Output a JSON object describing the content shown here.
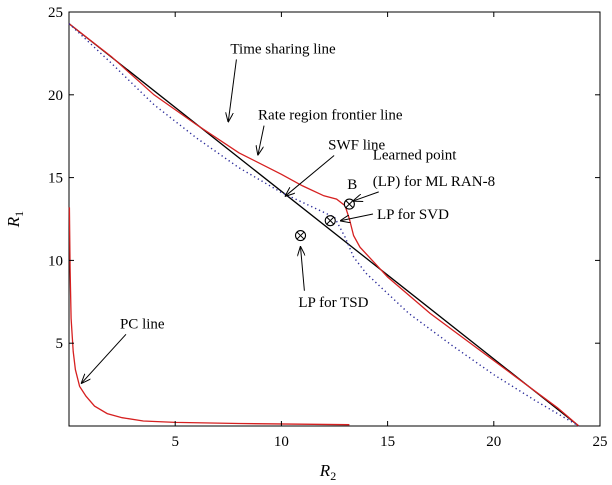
{
  "chart_data": {
    "type": "line",
    "xlabel": "R",
    "xlabel_sub": "2",
    "ylabel": "R",
    "ylabel_sub": "1",
    "xlim": [
      0,
      25
    ],
    "ylim": [
      0,
      25
    ],
    "xticks": [
      5,
      10,
      15,
      20,
      25
    ],
    "yticks": [
      5,
      10,
      15,
      20,
      25
    ],
    "grid": false,
    "colors": {
      "black": "#000000",
      "red": "#d62020",
      "blue": "#2b2b9a"
    },
    "series": [
      {
        "color": "#000000",
        "style": "solid",
        "x": [
          0,
          24
        ],
        "y": [
          24.3,
          0
        ]
      },
      {
        "color": "#d62020",
        "style": "solid",
        "x": [
          0,
          2,
          4,
          6,
          8,
          10,
          11,
          12,
          12.6,
          13.0,
          13.2,
          13.4,
          13.7,
          15,
          17,
          19,
          21,
          23,
          24
        ],
        "y": [
          24.3,
          22.3,
          20.0,
          18.2,
          16.5,
          15.2,
          14.5,
          13.9,
          13.7,
          13.3,
          12.5,
          11.5,
          10.8,
          9.0,
          6.8,
          4.9,
          3.0,
          1.1,
          0
        ]
      },
      {
        "color": "#2b2b9a",
        "style": "dotted",
        "x": [
          0,
          2,
          4,
          6,
          8,
          10,
          11,
          12,
          12.5,
          13.0,
          13.4,
          14,
          16,
          18,
          20,
          22,
          24
        ],
        "y": [
          24.3,
          21.9,
          19.4,
          17.4,
          15.6,
          14.1,
          13.5,
          12.9,
          12.6,
          11.4,
          10.2,
          9.2,
          6.8,
          4.9,
          3.1,
          1.5,
          0
        ]
      },
      {
        "color": "#d62020",
        "style": "solid",
        "x": [
          0.02,
          0.05,
          0.1,
          0.2,
          0.3,
          0.5,
          0.8,
          1.2,
          1.8,
          2.5,
          3.5,
          5,
          8,
          13.2
        ],
        "y": [
          13.2,
          9.5,
          6.5,
          4.5,
          3.4,
          2.4,
          1.8,
          1.2,
          0.75,
          0.5,
          0.3,
          0.22,
          0.15,
          0.08
        ]
      }
    ],
    "markers": [
      {
        "x": 13.2,
        "y": 13.4,
        "symbol": "circle-x"
      },
      {
        "x": 12.3,
        "y": 12.4,
        "symbol": "circle-x"
      },
      {
        "x": 10.9,
        "y": 11.5,
        "symbol": "circle-x"
      }
    ],
    "annotations": [
      {
        "text": "Time sharing line",
        "text_x": 7.6,
        "text_y": 22.5,
        "arrow_to": [
          7.5,
          18.4
        ]
      },
      {
        "text": "Rate region frontier line",
        "text_x": 8.9,
        "text_y": 18.5,
        "arrow_to": [
          8.9,
          16.4
        ]
      },
      {
        "text": "SWF line",
        "text_x": 12.2,
        "text_y": 16.7,
        "arrow_to": [
          10.2,
          13.9
        ]
      },
      {
        "text": "Learned point",
        "text_x": 14.3,
        "text_y": 16.1,
        "arrow_to": null
      },
      {
        "text": "(LP) for ML RAN-8",
        "text_x": 14.3,
        "text_y": 14.5,
        "arrow_to": [
          13.4,
          13.6
        ]
      },
      {
        "text": "B",
        "text_x": 13.1,
        "text_y": 14.3,
        "arrow_to": null
      },
      {
        "text": "LP for SVD",
        "text_x": 14.5,
        "text_y": 12.5,
        "arrow_to": [
          12.8,
          12.4
        ]
      },
      {
        "text": "LP for TSD",
        "text_x": 10.8,
        "text_y": 7.2,
        "arrow_to": [
          10.9,
          10.8
        ]
      },
      {
        "text": "PC line",
        "text_x": 2.4,
        "text_y": 5.9,
        "arrow_to": [
          0.6,
          2.6
        ]
      }
    ]
  }
}
